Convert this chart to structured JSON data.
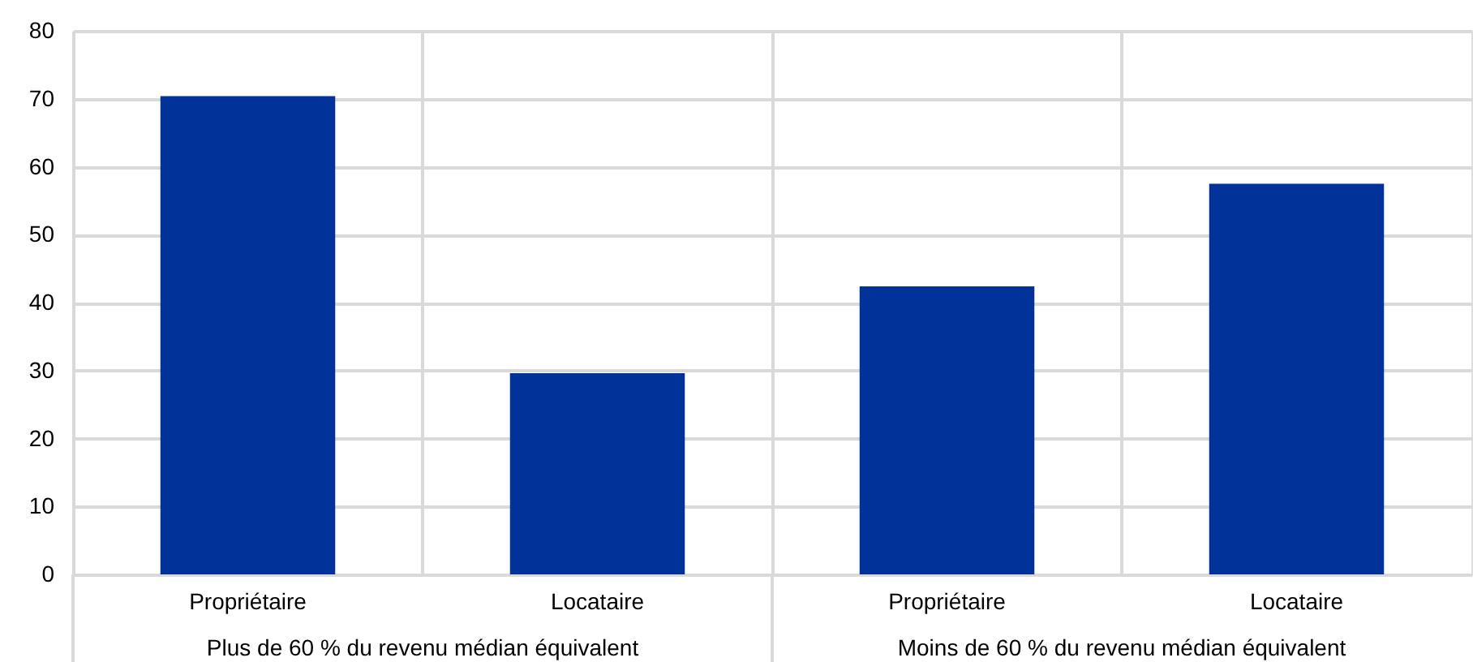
{
  "chart_data": {
    "type": "bar",
    "categories": [
      "Propriétaire",
      "Locataire",
      "Propriétaire",
      "Locataire"
    ],
    "values": [
      70.4,
      29.6,
      42.4,
      57.5
    ],
    "color": "#003299",
    "ylim": [
      0,
      80
    ],
    "yticks": [
      0,
      10,
      20,
      30,
      40,
      50,
      60,
      70,
      80
    ],
    "grid": true,
    "annotations": [
      "Plus de 60 % du revenu médian équivalent",
      "Moins de 60 % du revenu médian équivalent"
    ]
  }
}
